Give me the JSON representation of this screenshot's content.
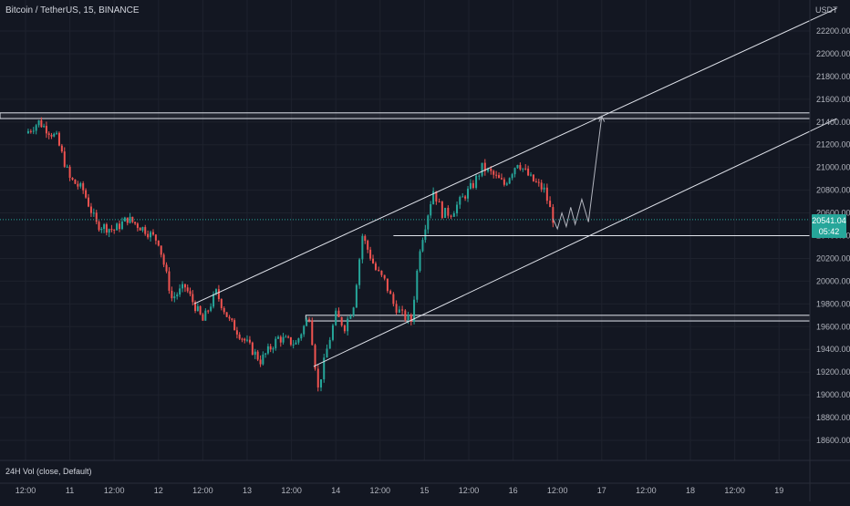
{
  "header": {
    "symbol_title": "Bitcoin / TetherUS, 15, BINANCE",
    "currency": "USDT"
  },
  "indicator": {
    "volume_label": "24H Vol (close, Default)"
  },
  "last_price": {
    "value": "20541.04",
    "countdown": "05:42",
    "color": "#26a69a"
  },
  "colors": {
    "background": "#131722",
    "up": "#26a69a",
    "down": "#ef5350",
    "drawing": "#e0e3eb",
    "grid": "#1e222d"
  },
  "chart_data": {
    "type": "candlestick",
    "title": "Bitcoin / TetherUS, 15, BINANCE",
    "ylim": [
      18400,
      22400
    ],
    "y_ticks": [
      22200,
      22000,
      21800,
      21600,
      21400,
      21200,
      21000,
      20800,
      20600,
      20400,
      20200,
      20000,
      19800,
      19600,
      19400,
      19200,
      19000,
      18800,
      18600
    ],
    "y_tick_labels": [
      "22200.00",
      "22000.00",
      "21800.00",
      "21600.00",
      "21400.00",
      "21200.00",
      "21000.00",
      "20800.00",
      "20600.00",
      "20400.00",
      "20200.00",
      "20000.00",
      "19800.00",
      "19600.00",
      "19400.00",
      "19200.00",
      "19000.00",
      "18800.00",
      "18600.00"
    ],
    "x_tick_labels": [
      "12:00",
      "11",
      "12:00",
      "12",
      "12:00",
      "13",
      "12:00",
      "14",
      "12:00",
      "15",
      "12:00",
      "16",
      "12:00",
      "17",
      "12:00",
      "18",
      "12:00",
      "19"
    ],
    "price_path": [
      [
        0,
        21300
      ],
      [
        0.3,
        21400
      ],
      [
        0.7,
        21260
      ],
      [
        1.0,
        20900
      ],
      [
        1.3,
        20800
      ],
      [
        1.6,
        20500
      ],
      [
        2.0,
        20450
      ],
      [
        2.3,
        20550
      ],
      [
        2.7,
        20450
      ],
      [
        3.0,
        20350
      ],
      [
        3.3,
        19850
      ],
      [
        3.6,
        19950
      ],
      [
        4.0,
        19650
      ],
      [
        4.3,
        19900
      ],
      [
        4.6,
        19650
      ],
      [
        5.0,
        19450
      ],
      [
        5.3,
        19300
      ],
      [
        5.7,
        19500
      ],
      [
        6.1,
        19450
      ],
      [
        6.4,
        19700
      ],
      [
        6.6,
        19050
      ],
      [
        6.8,
        19400
      ],
      [
        7.0,
        19700
      ],
      [
        7.2,
        19600
      ],
      [
        7.4,
        19800
      ],
      [
        7.6,
        20400
      ],
      [
        7.9,
        20100
      ],
      [
        8.1,
        20000
      ],
      [
        8.3,
        19800
      ],
      [
        8.5,
        19700
      ],
      [
        8.7,
        19650
      ],
      [
        8.9,
        20300
      ],
      [
        9.2,
        20800
      ],
      [
        9.4,
        20600
      ],
      [
        9.6,
        20600
      ],
      [
        9.8,
        20700
      ],
      [
        10.1,
        20850
      ],
      [
        10.3,
        21000
      ],
      [
        10.5,
        20950
      ],
      [
        10.8,
        20850
      ],
      [
        11.1,
        21050
      ],
      [
        11.4,
        20900
      ],
      [
        11.7,
        20800
      ],
      [
        11.9,
        20550
      ]
    ],
    "projection_path": [
      [
        11.9,
        20550
      ],
      [
        12.0,
        20460
      ],
      [
        12.1,
        20600
      ],
      [
        12.2,
        20480
      ],
      [
        12.3,
        20650
      ],
      [
        12.4,
        20500
      ],
      [
        12.55,
        20720
      ],
      [
        12.7,
        20520
      ],
      [
        13.0,
        21450
      ]
    ],
    "horizontal_zones": [
      {
        "top": 21480,
        "bottom": 21430,
        "x_start": 0
      },
      {
        "top": 19700,
        "bottom": 19650,
        "x_start": 6.9
      }
    ],
    "horizontal_levels": [
      {
        "price": 20400,
        "x_start": 8.3
      }
    ],
    "channel_lines": [
      {
        "x1": 3.8,
        "y1": 19800,
        "x2": 18.3,
        "y2": 22400
      },
      {
        "x1": 6.5,
        "y1": 19250,
        "x2": 18.3,
        "y2": 21430
      }
    ],
    "last_price_line": 20541.04,
    "grid": true
  }
}
